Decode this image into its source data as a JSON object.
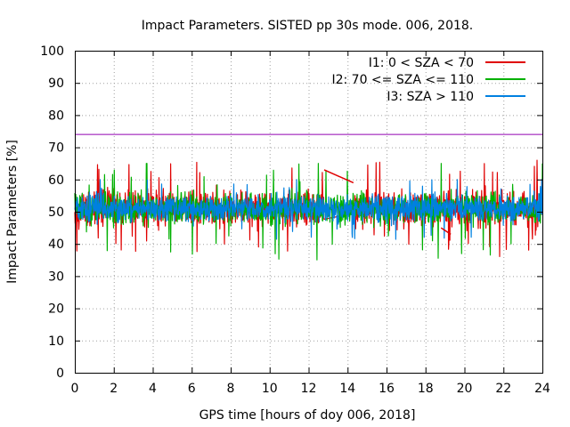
{
  "chart_data": {
    "type": "line",
    "title": "Impact Parameters. SISTED pp 30s mode. 006, 2018.",
    "xlabel": "GPS time [hours of doy 006, 2018]",
    "ylabel": "Impact Parameters [%]",
    "xlim": [
      0,
      24
    ],
    "ylim": [
      0,
      100
    ],
    "x_ticks": [
      0,
      2,
      4,
      6,
      8,
      10,
      12,
      14,
      16,
      18,
      20,
      22,
      24
    ],
    "y_ticks": [
      0,
      10,
      20,
      30,
      40,
      50,
      60,
      70,
      80,
      90,
      100
    ],
    "x_tick_labels": [
      "0",
      "2",
      "4",
      "6",
      "8",
      "10",
      "12",
      "14",
      "16",
      "18",
      "20",
      "22",
      "24"
    ],
    "y_tick_labels": [
      "0",
      "10",
      "20",
      "30",
      "40",
      "50",
      "60",
      "70",
      "80",
      "90",
      "100"
    ],
    "grid": true,
    "legend_position": "top-right",
    "series": [
      {
        "name": "I1: 0 < SZA < 70",
        "color": "#e00000",
        "center": 51,
        "typical_range": [
          43,
          59
        ],
        "extremes": [
          36,
          66
        ],
        "gap_note": "straight segment 12.8h-14.3h (63 to 59) and 18.8h-19.3h"
      },
      {
        "name": "I2: 70 <= SZA <= 110",
        "color": "#00b000",
        "center": 51,
        "typical_range": [
          44,
          58
        ],
        "extremes": [
          33,
          65
        ]
      },
      {
        "name": "I3: SZA > 110",
        "color": "#0080e0",
        "center": 51,
        "typical_range": [
          45,
          57
        ],
        "extremes": [
          40,
          60
        ]
      }
    ],
    "reference_line": {
      "y": 74,
      "color": "#9000b0"
    }
  }
}
